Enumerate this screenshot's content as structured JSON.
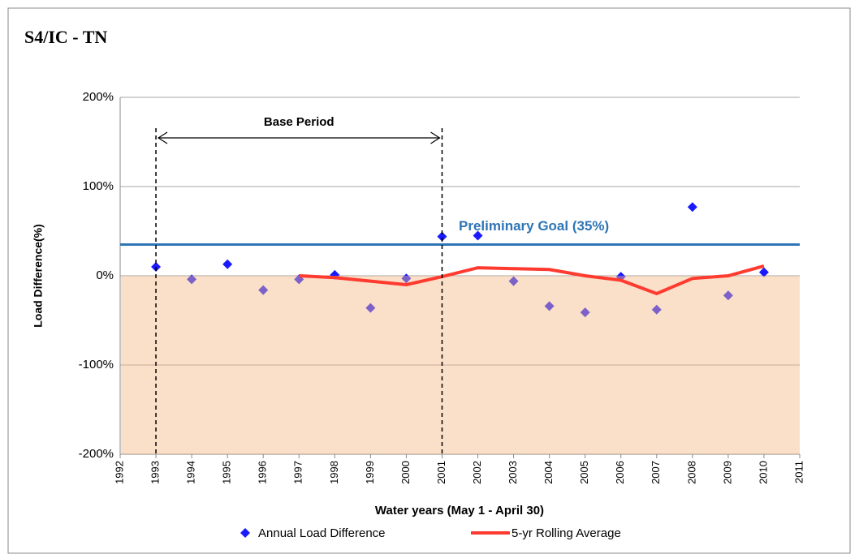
{
  "chart_data": {
    "type": "scatter_line",
    "title": "S4/IC - TN",
    "x_label": "Water years (May 1 - April 30)",
    "y_label": "Load Difference(%)",
    "xlim": [
      1992,
      2011
    ],
    "xticks": [
      1992,
      1993,
      1994,
      1995,
      1996,
      1997,
      1998,
      1999,
      2000,
      2001,
      2002,
      2003,
      2004,
      2005,
      2006,
      2007,
      2008,
      2009,
      2010,
      2011
    ],
    "ylim": [
      -200,
      200
    ],
    "yticks": [
      {
        "value": -200,
        "label": "-200%"
      },
      {
        "value": -100,
        "label": "-100%"
      },
      {
        "value": 0,
        "label": "0%"
      },
      {
        "value": 100,
        "label": "100%"
      },
      {
        "value": 200,
        "label": "200%"
      }
    ],
    "grid": true,
    "shaded_range": [
      -200,
      0
    ],
    "shade_color": "#f5b888",
    "series": [
      {
        "name": "Annual Load Difference",
        "kind": "scatter",
        "color": "#1a1aff",
        "x": [
          1993,
          1994,
          1995,
          1996,
          1997,
          1998,
          1999,
          2000,
          2001,
          2002,
          2003,
          2004,
          2005,
          2006,
          2007,
          2008,
          2009,
          2010
        ],
        "values": [
          10,
          -4,
          13,
          -16,
          -4,
          1,
          -36,
          -3,
          44,
          45,
          -6,
          -34,
          -41,
          -1,
          -38,
          77,
          -22,
          4
        ]
      },
      {
        "name": "5-yr Rolling Average",
        "kind": "line",
        "color": "#ff3b30",
        "x": [
          1997,
          1998,
          1999,
          2000,
          2001,
          2002,
          2003,
          2004,
          2005,
          2006,
          2007,
          2008,
          2009,
          2010
        ],
        "values": [
          0,
          -2,
          -6,
          -10,
          -1,
          9,
          8,
          7,
          0,
          -5,
          -20,
          -3,
          0,
          11
        ]
      }
    ],
    "goal": {
      "label": "Preliminary Goal (35%)",
      "value": 35,
      "color": "#2e75b6"
    },
    "base_period": {
      "label": "Base Period",
      "x": [
        1993,
        2001
      ]
    }
  }
}
